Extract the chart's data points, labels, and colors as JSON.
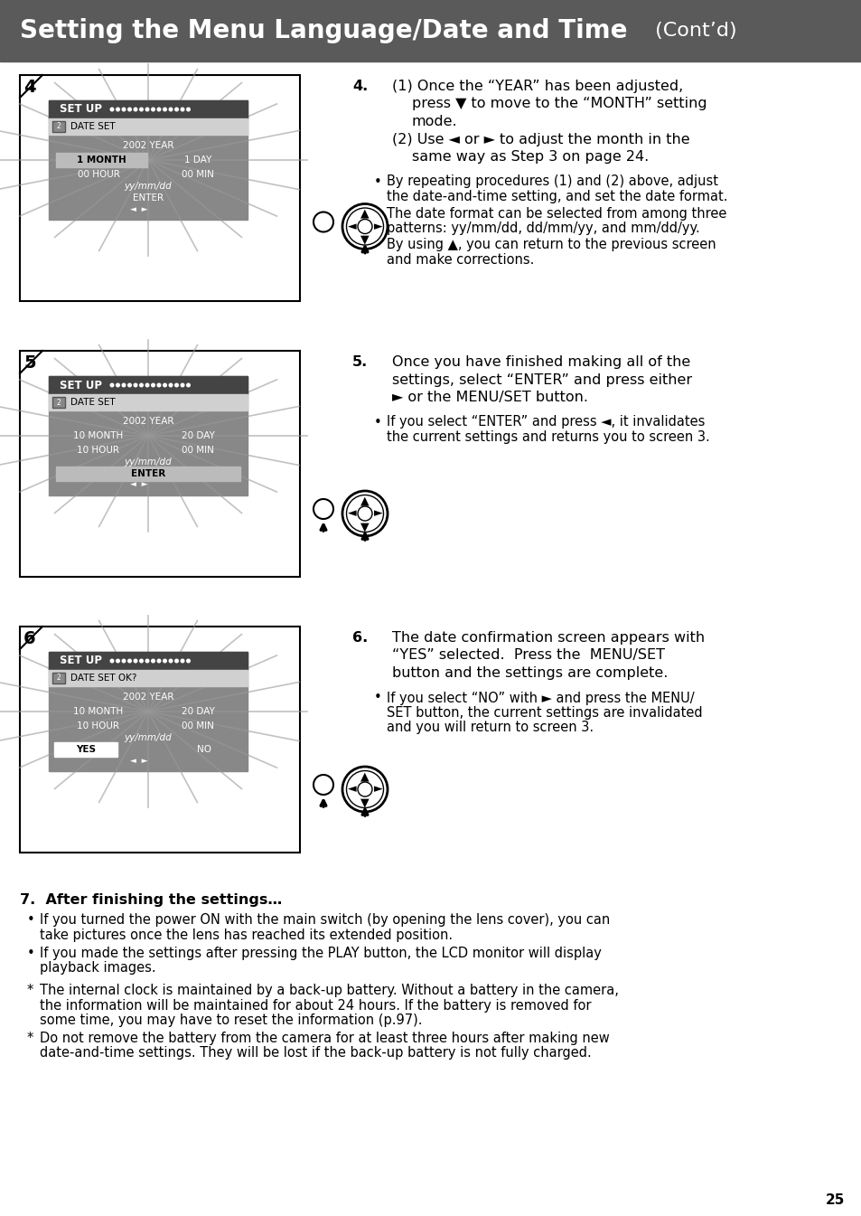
{
  "header_bg": "#5a5a5a",
  "page_bg": "#ffffff",
  "title_bold": "Setting the Menu Language/Date and Time",
  "title_normal": " (Cont’d)",
  "page_number": "25",
  "screen_gray": "#909090",
  "screen_dark": "#606060",
  "screen_header_bg": "#505050",
  "date_set_bg": "#d8d8d8",
  "highlight_bg": "#b8b8b8",
  "step4_lines": [
    "4.   (1) Once the “YEAR” has been adjusted,",
    "         press ▼ to move to the “MONTH” setting",
    "         mode.",
    "     (2) Use ◄ or ► to adjust the month in the",
    "         same way as Step 3 on page 24."
  ],
  "step4_bullets": [
    "By repeating procedures (1) and (2) above, adjust",
    "the date-and-time setting, and set the date format.",
    "The date format can be selected from among three",
    "patterns: yy/mm/dd, dd/mm/yy, and mm/dd/yy.",
    "By using ▲, you can return to the previous screen",
    "and make corrections."
  ],
  "step5_lines": [
    "5.   Once you have finished making all of the",
    "     settings, select “ENTER” and press either",
    "     ► or the MENU/SET button."
  ],
  "step5_bullets": [
    "If you select “ENTER” and press ◄, it invalidates",
    "the current settings and returns you to screen 3."
  ],
  "step6_lines": [
    "6.   The date confirmation screen appears with",
    "     “YES” selected.  Press the  MENU/SET",
    "     button and the settings are complete."
  ],
  "step6_bullets": [
    "If you select “NO” with ► and press the MENU/",
    "SET button, the current settings are invalidated",
    "and you will return to screen 3."
  ],
  "step7_head": "7.  After finishing the settings…",
  "step7_bullets": [
    "If you turned the power ON with the main switch (by opening the lens cover), you can",
    "take pictures once the lens has reached its extended position.",
    "If you made the settings after pressing the PLAY button, the LCD monitor will display",
    "playback images."
  ],
  "step7_notes": [
    "The internal clock is maintained by a back-up battery. Without a battery in the camera,",
    "the information will be maintained for about 24 hours. If the battery is removed for",
    "some time, you may have to reset the information (p.97).",
    "Do not remove the battery from the camera for at least three hours after making new",
    "date-and-time settings. They will be lost if the back-up battery is not fully charged."
  ]
}
